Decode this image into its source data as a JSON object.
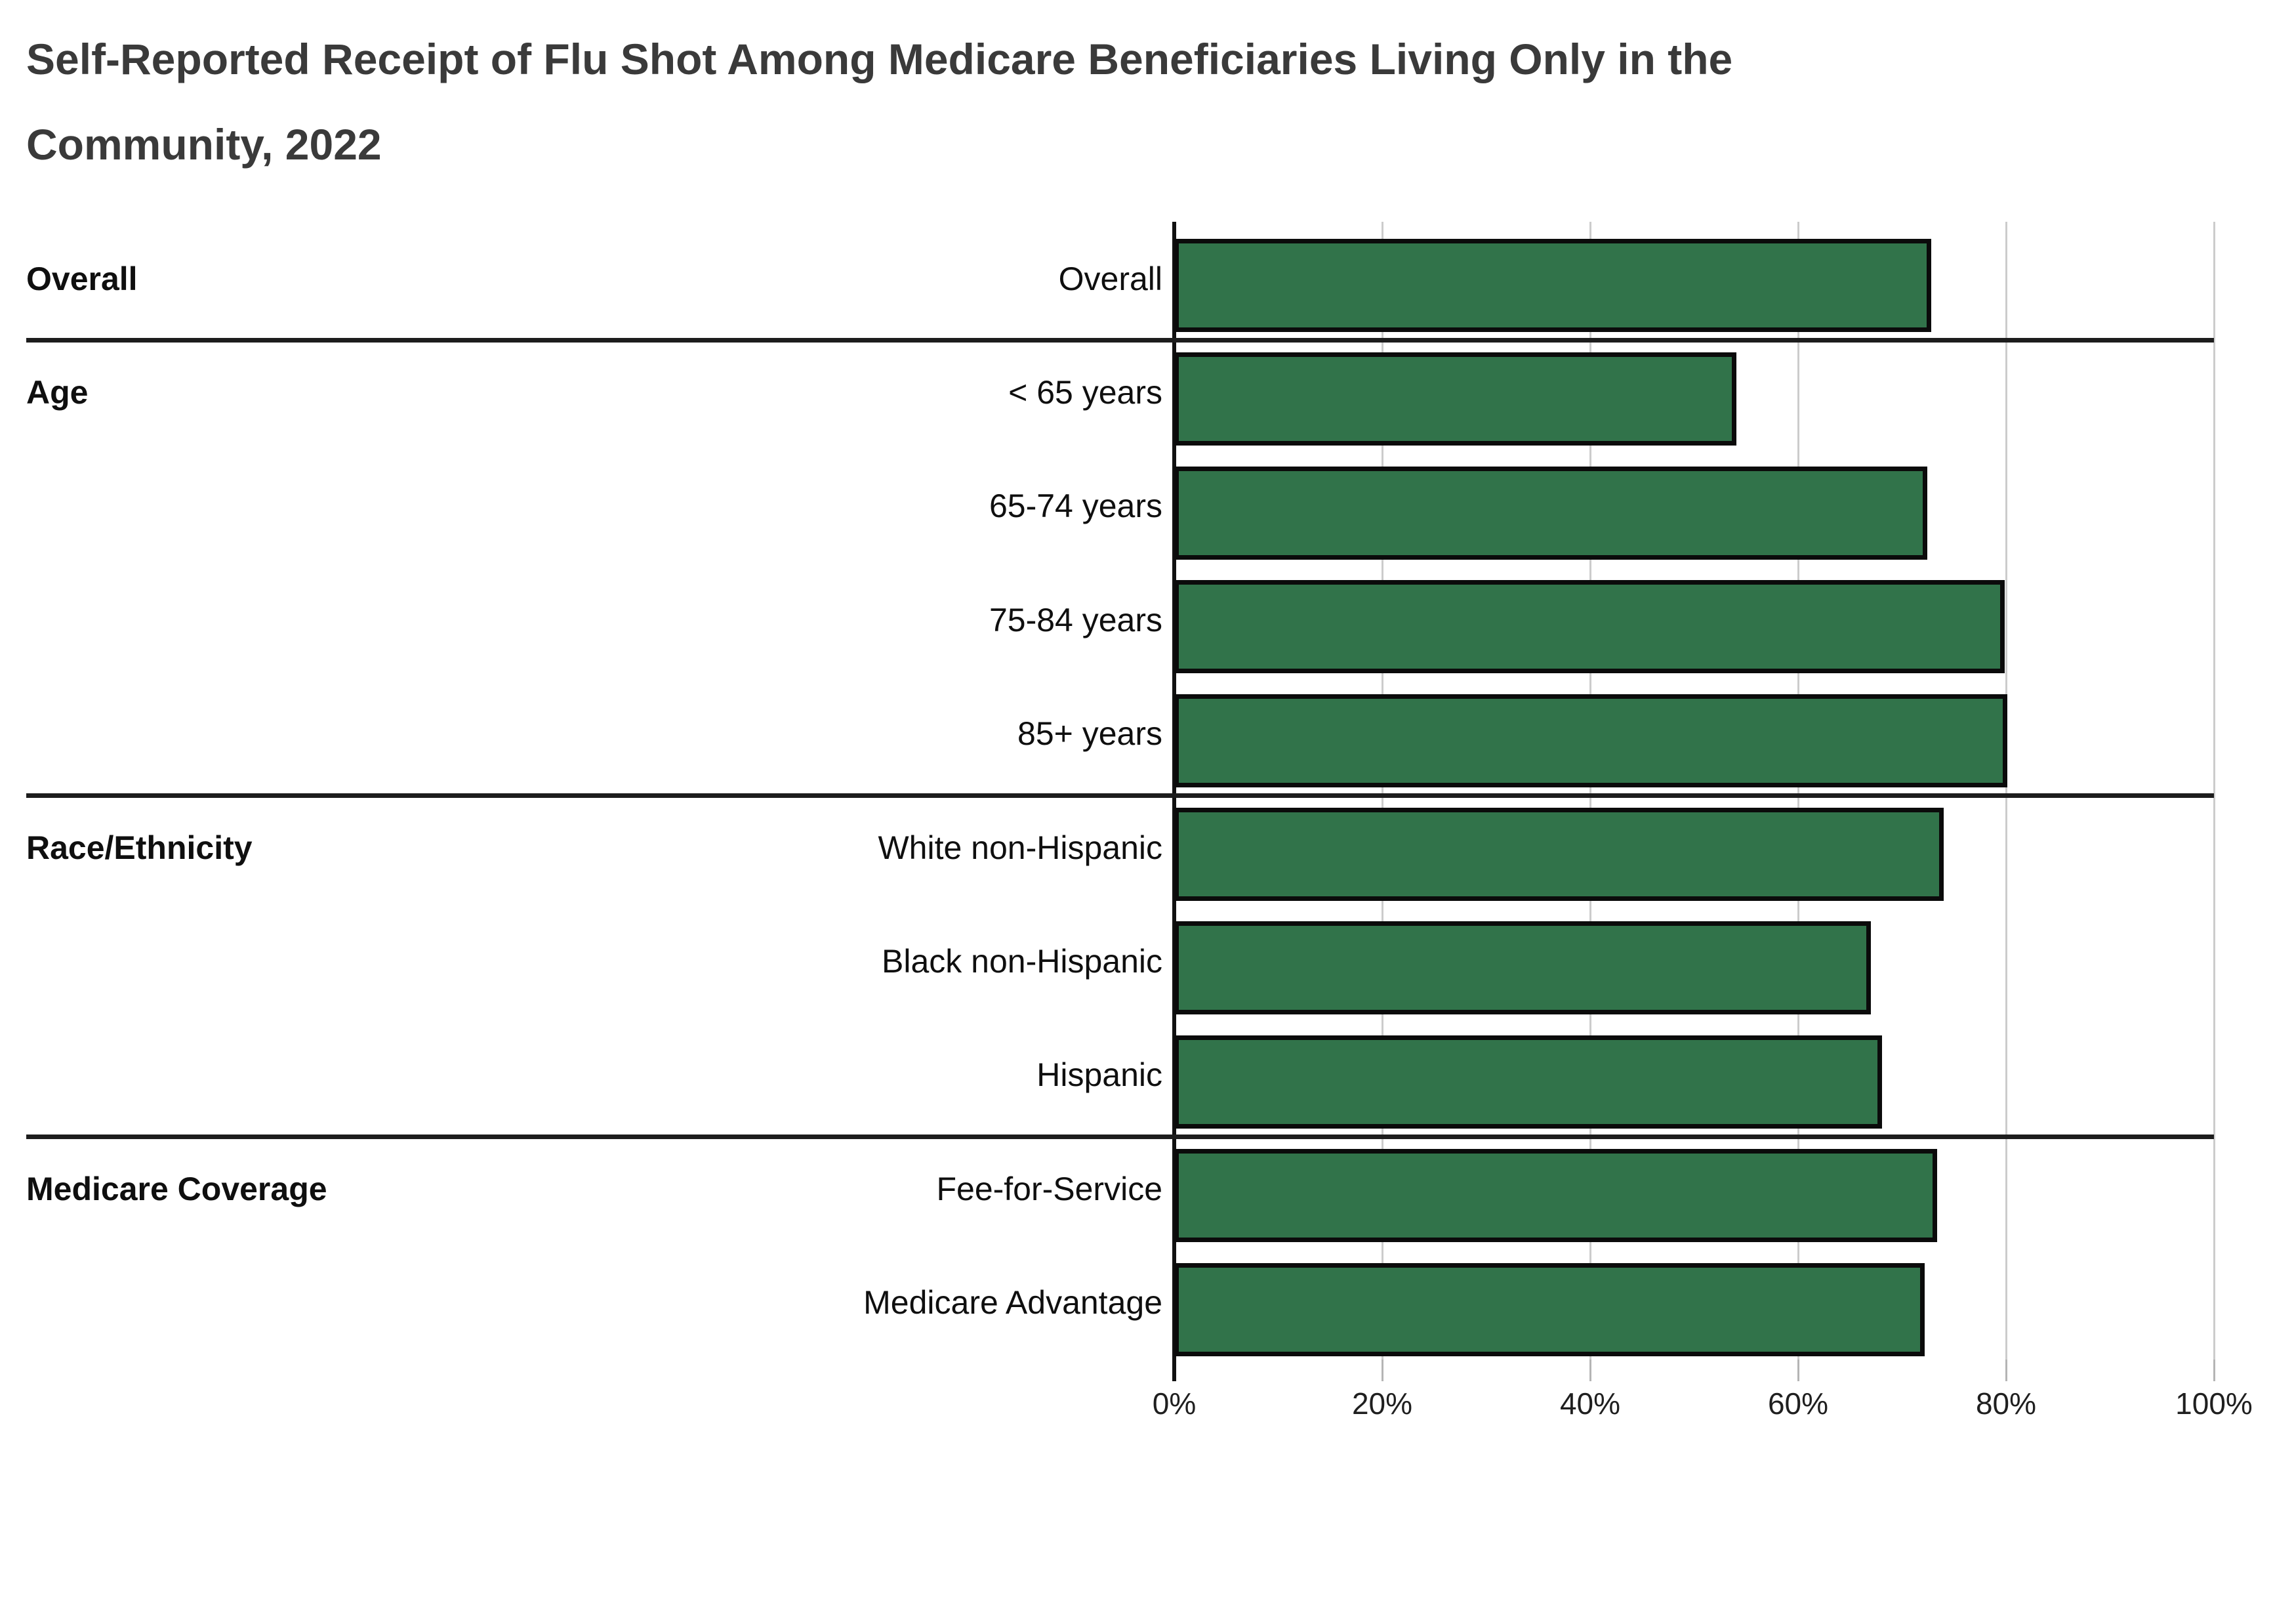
{
  "title_lines": [
    "Self-Reported Receipt of Flu Shot Among Medicare Beneficiaries Living Only in the",
    "Community, 2022"
  ],
  "chart_data": {
    "type": "bar",
    "orientation": "horizontal",
    "title": "Self-Reported Receipt of Flu Shot Among Medicare Beneficiaries Living Only in the Community, 2022",
    "unit": "%",
    "xlim": [
      0,
      100
    ],
    "grid": true,
    "groups": [
      {
        "label": "Overall",
        "rows": [
          {
            "label": "Overall",
            "value": 72.8
          }
        ]
      },
      {
        "label": "Age",
        "rows": [
          {
            "label": "< 65 years",
            "value": 54.1
          },
          {
            "label": "65-74 years",
            "value": 72.4
          },
          {
            "label": "75-84 years",
            "value": 79.9
          },
          {
            "label": "85+ years",
            "value": 80.1
          }
        ]
      },
      {
        "label": "Race/Ethnicity",
        "rows": [
          {
            "label": "White non-Hispanic",
            "value": 74.0
          },
          {
            "label": "Black non-Hispanic",
            "value": 67.0
          },
          {
            "label": "Hispanic",
            "value": 68.1
          }
        ]
      },
      {
        "label": "Medicare Coverage",
        "rows": [
          {
            "label": "Fee-for-Service",
            "value": 73.4
          },
          {
            "label": "Medicare Advantage",
            "value": 72.2
          }
        ]
      }
    ],
    "x_axis": {
      "ticks": [
        {
          "value": 0,
          "label": "0%"
        },
        {
          "value": 20,
          "label": "20%"
        },
        {
          "value": 40,
          "label": "40%"
        },
        {
          "value": 60,
          "label": "60%"
        },
        {
          "value": 80,
          "label": "80%"
        },
        {
          "value": 100,
          "label": "100%"
        }
      ]
    },
    "colors": {
      "bar_fill": "#31734A",
      "bar_border": "#0B0B0B",
      "gridline": "#CCCCCC",
      "tick_stub": "#B5B5B5",
      "axis": "#111111",
      "divider": "#1D1D1D",
      "title_text": "#3A3A3A",
      "label_text": "#0F0F0F",
      "tick_label_text": "#1F1F1F"
    }
  }
}
